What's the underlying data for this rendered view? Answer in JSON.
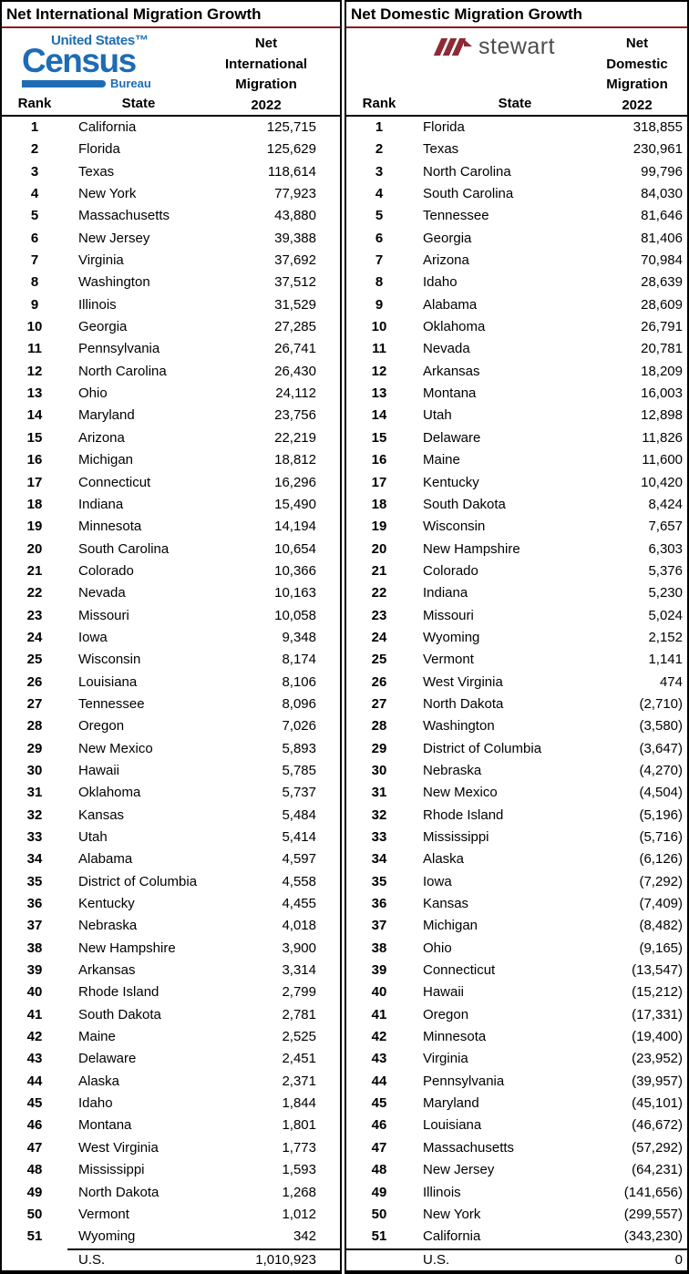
{
  "colors": {
    "title_rule_red": "#8C1C24",
    "census_blue": "#1D6CB5",
    "stewart_red": "#8E2936",
    "stewart_text_gray": "#4D4D4F",
    "text": "#000000",
    "background": "#FFFFFF"
  },
  "logos": {
    "census": {
      "top": "United States™",
      "main": "Census",
      "sub": "Bureau"
    },
    "stewart": {
      "word": "stewart"
    }
  },
  "chart_data": [
    {
      "type": "table",
      "title": "Net International Migration Growth",
      "col_rank": "Rank",
      "col_state": "State",
      "value_header_lines": [
        "Net",
        "International",
        "Migration"
      ],
      "year": "2022",
      "columns": [
        "Rank",
        "State",
        "Net International Migration 2022"
      ],
      "rows": [
        [
          1,
          "California",
          "125,715"
        ],
        [
          2,
          "Florida",
          "125,629"
        ],
        [
          3,
          "Texas",
          "118,614"
        ],
        [
          4,
          "New York",
          "77,923"
        ],
        [
          5,
          "Massachusetts",
          "43,880"
        ],
        [
          6,
          "New Jersey",
          "39,388"
        ],
        [
          7,
          "Virginia",
          "37,692"
        ],
        [
          8,
          "Washington",
          "37,512"
        ],
        [
          9,
          "Illinois",
          "31,529"
        ],
        [
          10,
          "Georgia",
          "27,285"
        ],
        [
          11,
          "Pennsylvania",
          "26,741"
        ],
        [
          12,
          "North Carolina",
          "26,430"
        ],
        [
          13,
          "Ohio",
          "24,112"
        ],
        [
          14,
          "Maryland",
          "23,756"
        ],
        [
          15,
          "Arizona",
          "22,219"
        ],
        [
          16,
          "Michigan",
          "18,812"
        ],
        [
          17,
          "Connecticut",
          "16,296"
        ],
        [
          18,
          "Indiana",
          "15,490"
        ],
        [
          19,
          "Minnesota",
          "14,194"
        ],
        [
          20,
          "South Carolina",
          "10,654"
        ],
        [
          21,
          "Colorado",
          "10,366"
        ],
        [
          22,
          "Nevada",
          "10,163"
        ],
        [
          23,
          "Missouri",
          "10,058"
        ],
        [
          24,
          "Iowa",
          "9,348"
        ],
        [
          25,
          "Wisconsin",
          "8,174"
        ],
        [
          26,
          "Louisiana",
          "8,106"
        ],
        [
          27,
          "Tennessee",
          "8,096"
        ],
        [
          28,
          "Oregon",
          "7,026"
        ],
        [
          29,
          "New Mexico",
          "5,893"
        ],
        [
          30,
          "Hawaii",
          "5,785"
        ],
        [
          31,
          "Oklahoma",
          "5,737"
        ],
        [
          32,
          "Kansas",
          "5,484"
        ],
        [
          33,
          "Utah",
          "5,414"
        ],
        [
          34,
          "Alabama",
          "4,597"
        ],
        [
          35,
          "District of Columbia",
          "4,558"
        ],
        [
          36,
          "Kentucky",
          "4,455"
        ],
        [
          37,
          "Nebraska",
          "4,018"
        ],
        [
          38,
          "New Hampshire",
          "3,900"
        ],
        [
          39,
          "Arkansas",
          "3,314"
        ],
        [
          40,
          "Rhode Island",
          "2,799"
        ],
        [
          41,
          "South Dakota",
          "2,781"
        ],
        [
          42,
          "Maine",
          "2,525"
        ],
        [
          43,
          "Delaware",
          "2,451"
        ],
        [
          44,
          "Alaska",
          "2,371"
        ],
        [
          45,
          "Idaho",
          "1,844"
        ],
        [
          46,
          "Montana",
          "1,801"
        ],
        [
          47,
          "West Virginia",
          "1,773"
        ],
        [
          48,
          "Mississippi",
          "1,593"
        ],
        [
          49,
          "North Dakota",
          "1,268"
        ],
        [
          50,
          "Vermont",
          "1,012"
        ],
        [
          51,
          "Wyoming",
          "342"
        ]
      ],
      "total_label": "U.S.",
      "total_value": "1,010,923"
    },
    {
      "type": "table",
      "title": "Net Domestic Migration Growth",
      "col_rank": "Rank",
      "col_state": "State",
      "value_header_lines": [
        "Net",
        "Domestic",
        "Migration"
      ],
      "year": "2022",
      "columns": [
        "Rank",
        "State",
        "Net Domestic Migration 2022"
      ],
      "negative_format": "parentheses",
      "rows": [
        [
          1,
          "Florida",
          "318,855"
        ],
        [
          2,
          "Texas",
          "230,961"
        ],
        [
          3,
          "North Carolina",
          "99,796"
        ],
        [
          4,
          "South Carolina",
          "84,030"
        ],
        [
          5,
          "Tennessee",
          "81,646"
        ],
        [
          6,
          "Georgia",
          "81,406"
        ],
        [
          7,
          "Arizona",
          "70,984"
        ],
        [
          8,
          "Idaho",
          "28,639"
        ],
        [
          9,
          "Alabama",
          "28,609"
        ],
        [
          10,
          "Oklahoma",
          "26,791"
        ],
        [
          11,
          "Nevada",
          "20,781"
        ],
        [
          12,
          "Arkansas",
          "18,209"
        ],
        [
          13,
          "Montana",
          "16,003"
        ],
        [
          14,
          "Utah",
          "12,898"
        ],
        [
          15,
          "Delaware",
          "11,826"
        ],
        [
          16,
          "Maine",
          "11,600"
        ],
        [
          17,
          "Kentucky",
          "10,420"
        ],
        [
          18,
          "South Dakota",
          "8,424"
        ],
        [
          19,
          "Wisconsin",
          "7,657"
        ],
        [
          20,
          "New Hampshire",
          "6,303"
        ],
        [
          21,
          "Colorado",
          "5,376"
        ],
        [
          22,
          "Indiana",
          "5,230"
        ],
        [
          23,
          "Missouri",
          "5,024"
        ],
        [
          24,
          "Wyoming",
          "2,152"
        ],
        [
          25,
          "Vermont",
          "1,141"
        ],
        [
          26,
          "West Virginia",
          "474"
        ],
        [
          27,
          "North Dakota",
          "(2,710)"
        ],
        [
          28,
          "Washington",
          "(3,580)"
        ],
        [
          29,
          "District of Columbia",
          "(3,647)"
        ],
        [
          30,
          "Nebraska",
          "(4,270)"
        ],
        [
          31,
          "New Mexico",
          "(4,504)"
        ],
        [
          32,
          "Rhode Island",
          "(5,196)"
        ],
        [
          33,
          "Mississippi",
          "(5,716)"
        ],
        [
          34,
          "Alaska",
          "(6,126)"
        ],
        [
          35,
          "Iowa",
          "(7,292)"
        ],
        [
          36,
          "Kansas",
          "(7,409)"
        ],
        [
          37,
          "Michigan",
          "(8,482)"
        ],
        [
          38,
          "Ohio",
          "(9,165)"
        ],
        [
          39,
          "Connecticut",
          "(13,547)"
        ],
        [
          40,
          "Hawaii",
          "(15,212)"
        ],
        [
          41,
          "Oregon",
          "(17,331)"
        ],
        [
          42,
          "Minnesota",
          "(19,400)"
        ],
        [
          43,
          "Virginia",
          "(23,952)"
        ],
        [
          44,
          "Pennsylvania",
          "(39,957)"
        ],
        [
          45,
          "Maryland",
          "(45,101)"
        ],
        [
          46,
          "Louisiana",
          "(46,672)"
        ],
        [
          47,
          "Massachusetts",
          "(57,292)"
        ],
        [
          48,
          "New Jersey",
          "(64,231)"
        ],
        [
          49,
          "Illinois",
          "(141,656)"
        ],
        [
          50,
          "New York",
          "(299,557)"
        ],
        [
          51,
          "California",
          "(343,230)"
        ]
      ],
      "total_label": "U.S.",
      "total_value": "0"
    }
  ]
}
